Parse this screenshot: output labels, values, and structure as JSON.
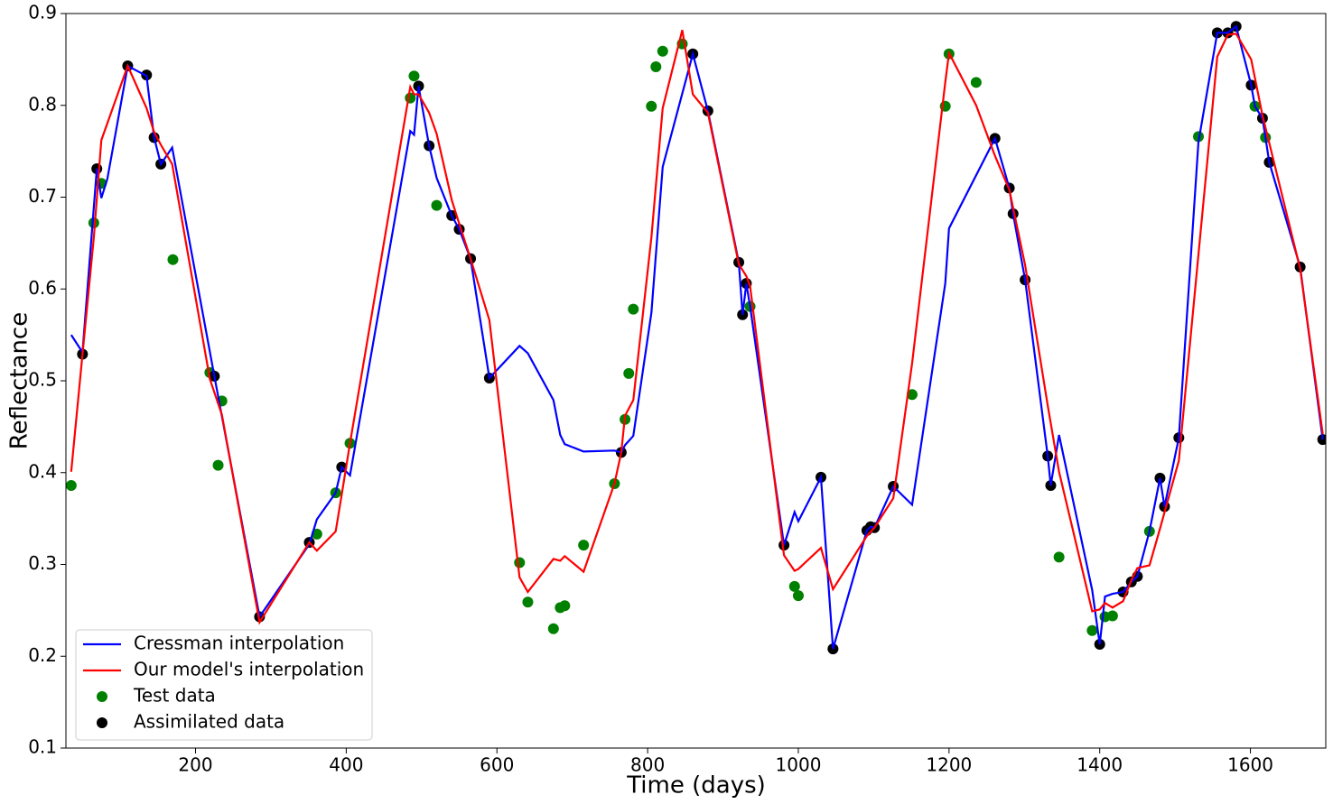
{
  "chart_data": {
    "type": "line",
    "xlabel": "Time (days)",
    "ylabel": "Reflectance",
    "xlim": [
      28,
      1700
    ],
    "ylim": [
      0.1,
      0.9
    ],
    "xticks": [
      200,
      400,
      600,
      800,
      1000,
      1200,
      1400,
      1600
    ],
    "yticks": [
      0.1,
      0.2,
      0.3,
      0.4,
      0.5,
      0.6,
      0.7,
      0.8,
      0.9
    ],
    "legend": "lower left",
    "series": [
      {
        "name": "Cressman interpolation",
        "type": "line",
        "color": "#0000ff",
        "x": [
          35,
          50,
          69,
          75,
          83,
          110,
          135,
          145,
          154,
          169,
          225,
          285,
          351,
          361,
          386,
          394,
          405,
          485,
          490,
          496,
          510,
          520,
          540,
          550,
          565,
          590,
          630,
          641,
          675,
          684,
          690,
          715,
          756,
          765,
          770,
          781,
          805,
          820,
          860,
          880,
          921,
          926,
          931,
          936,
          981,
          995,
          1000,
          1030,
          1046,
          1091,
          1096,
          1101,
          1126,
          1151,
          1195,
          1200,
          1261,
          1280,
          1285,
          1301,
          1331,
          1335,
          1346,
          1390,
          1400,
          1407,
          1417,
          1431,
          1442,
          1450,
          1466,
          1480,
          1486,
          1505,
          1531,
          1556,
          1570,
          1581,
          1601,
          1606,
          1616,
          1625,
          1666,
          1696
        ],
        "values": [
          0.55,
          0.531,
          0.731,
          0.699,
          0.72,
          0.843,
          0.832,
          0.765,
          0.736,
          0.754,
          0.505,
          0.243,
          0.322,
          0.349,
          0.378,
          0.406,
          0.397,
          0.772,
          0.768,
          0.821,
          0.756,
          0.721,
          0.68,
          0.665,
          0.633,
          0.503,
          0.538,
          0.53,
          0.479,
          0.441,
          0.431,
          0.423,
          0.424,
          0.422,
          0.43,
          0.44,
          0.574,
          0.733,
          0.856,
          0.794,
          0.629,
          0.572,
          0.606,
          0.581,
          0.321,
          0.357,
          0.347,
          0.395,
          0.208,
          0.337,
          0.341,
          0.34,
          0.385,
          0.365,
          0.606,
          0.666,
          0.764,
          0.71,
          0.682,
          0.61,
          0.418,
          0.386,
          0.441,
          0.272,
          0.213,
          0.265,
          0.268,
          0.27,
          0.281,
          0.287,
          0.336,
          0.394,
          0.363,
          0.438,
          0.76,
          0.879,
          0.879,
          0.886,
          0.822,
          0.799,
          0.786,
          0.738,
          0.624,
          0.436
        ]
      },
      {
        "name": "Our model's interpolation",
        "type": "line",
        "color": "#ff0000",
        "x": [
          35,
          50,
          65,
          75,
          110,
          135,
          145,
          154,
          169,
          219,
          235,
          285,
          351,
          361,
          386,
          394,
          405,
          485,
          490,
          496,
          510,
          520,
          540,
          550,
          565,
          590,
          630,
          641,
          675,
          684,
          690,
          715,
          756,
          765,
          770,
          781,
          805,
          811,
          820,
          846,
          860,
          880,
          921,
          931,
          936,
          981,
          995,
          1000,
          1030,
          1046,
          1091,
          1101,
          1126,
          1151,
          1195,
          1200,
          1236,
          1261,
          1280,
          1301,
          1331,
          1346,
          1390,
          1400,
          1407,
          1417,
          1431,
          1442,
          1450,
          1466,
          1480,
          1505,
          1556,
          1570,
          1581,
          1601,
          1616,
          1666,
          1696
        ],
        "values": [
          0.401,
          0.529,
          0.656,
          0.762,
          0.843,
          0.797,
          0.771,
          0.757,
          0.736,
          0.502,
          0.463,
          0.237,
          0.324,
          0.315,
          0.336,
          0.376,
          0.432,
          0.82,
          0.812,
          0.812,
          0.792,
          0.769,
          0.697,
          0.671,
          0.633,
          0.566,
          0.286,
          0.27,
          0.306,
          0.304,
          0.309,
          0.292,
          0.388,
          0.422,
          0.462,
          0.479,
          0.656,
          0.713,
          0.797,
          0.882,
          0.812,
          0.792,
          0.627,
          0.614,
          0.603,
          0.31,
          0.293,
          0.295,
          0.318,
          0.273,
          0.331,
          0.34,
          0.372,
          0.519,
          0.825,
          0.857,
          0.8,
          0.745,
          0.708,
          0.626,
          0.473,
          0.401,
          0.249,
          0.251,
          0.258,
          0.253,
          0.26,
          0.283,
          0.296,
          0.299,
          0.339,
          0.413,
          0.853,
          0.877,
          0.878,
          0.85,
          0.789,
          0.622,
          0.442
        ]
      },
      {
        "name": "Test data",
        "type": "scatter",
        "color": "#008000",
        "x": [
          35,
          65,
          75,
          170,
          219,
          235,
          230,
          361,
          386,
          405,
          485,
          490,
          520,
          630,
          641,
          675,
          684,
          690,
          715,
          756,
          770,
          775,
          781,
          805,
          811,
          820,
          846,
          936,
          995,
          1000,
          1151,
          1195,
          1200,
          1236,
          1346,
          1390,
          1407,
          1417,
          1466,
          1531,
          1606,
          1620
        ],
        "values": [
          0.386,
          0.672,
          0.715,
          0.632,
          0.509,
          0.478,
          0.408,
          0.333,
          0.378,
          0.432,
          0.808,
          0.832,
          0.691,
          0.302,
          0.259,
          0.23,
          0.253,
          0.255,
          0.321,
          0.388,
          0.458,
          0.508,
          0.578,
          0.799,
          0.842,
          0.859,
          0.867,
          0.581,
          0.276,
          0.266,
          0.485,
          0.799,
          0.856,
          0.825,
          0.308,
          0.228,
          0.243,
          0.244,
          0.336,
          0.766,
          0.799,
          0.765
        ]
      },
      {
        "name": "Assimilated data",
        "type": "scatter",
        "color": "#000000",
        "x": [
          50,
          69,
          110,
          135,
          145,
          154,
          225,
          285,
          351,
          394,
          496,
          510,
          540,
          550,
          565,
          590,
          765,
          860,
          880,
          921,
          926,
          931,
          981,
          1030,
          1046,
          1091,
          1096,
          1101,
          1126,
          1261,
          1280,
          1285,
          1301,
          1331,
          1335,
          1400,
          1431,
          1442,
          1450,
          1480,
          1486,
          1505,
          1556,
          1570,
          1581,
          1601,
          1616,
          1625,
          1666,
          1696
        ],
        "values": [
          0.529,
          0.731,
          0.843,
          0.833,
          0.765,
          0.736,
          0.505,
          0.243,
          0.324,
          0.406,
          0.821,
          0.756,
          0.68,
          0.665,
          0.633,
          0.503,
          0.422,
          0.856,
          0.794,
          0.629,
          0.572,
          0.606,
          0.321,
          0.395,
          0.208,
          0.337,
          0.341,
          0.34,
          0.385,
          0.764,
          0.71,
          0.682,
          0.61,
          0.418,
          0.386,
          0.213,
          0.27,
          0.281,
          0.287,
          0.394,
          0.363,
          0.438,
          0.879,
          0.879,
          0.886,
          0.822,
          0.786,
          0.738,
          0.624,
          0.436
        ]
      }
    ]
  }
}
